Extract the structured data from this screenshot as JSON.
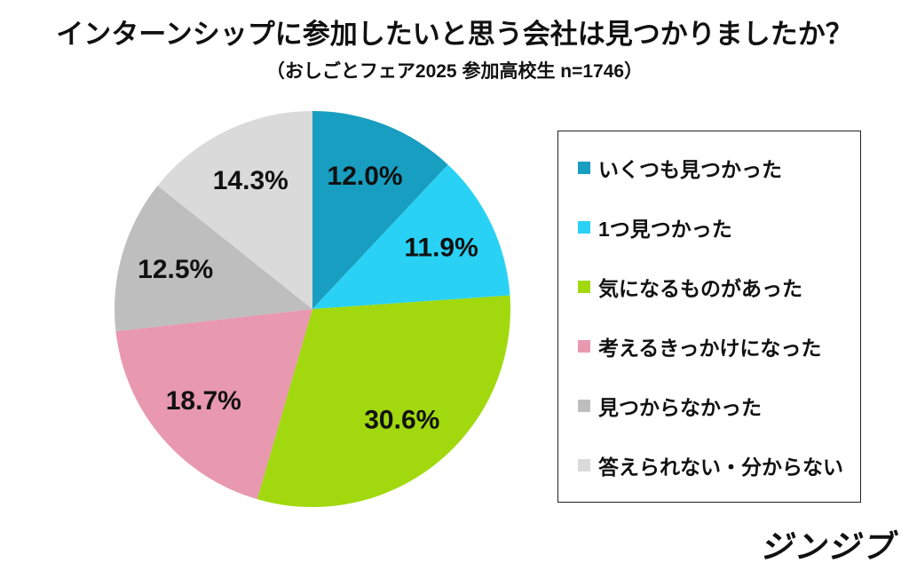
{
  "header": {
    "title": "インターンシップに参加したいと思う会社は見つかりましたか？",
    "subtitle": "（おしごとフェア2025 参加高校生 n=1746）"
  },
  "chart_data": {
    "type": "pie",
    "title": "インターンシップに参加したいと思う会社は見つかりましたか？",
    "subtitle": "（おしごとフェア2025 参加高校生 n=1746）",
    "sample_note": "おしごとフェア2025 参加高校生",
    "n": 1746,
    "start_angle_deg": 0,
    "direction": "clockwise",
    "legend_position": "right",
    "label_radius_fraction": 0.72,
    "segments": [
      {
        "label": "いくつも見つかった",
        "value": 12.0,
        "display": "12.0%",
        "color": "#189EC0"
      },
      {
        "label": "1つ見つかった",
        "value": 11.9,
        "display": "11.9%",
        "color": "#29D2F4"
      },
      {
        "label": "気になるものがあった",
        "value": 30.6,
        "display": "30.6%",
        "color": "#A1D90E"
      },
      {
        "label": "考えるきっかけになった",
        "value": 18.7,
        "display": "18.7%",
        "color": "#E898AF"
      },
      {
        "label": "見つからなかった",
        "value": 12.5,
        "display": "12.5%",
        "color": "#BEBEBE"
      },
      {
        "label": "答えられない・分からない",
        "value": 14.3,
        "display": "14.3%",
        "color": "#DADADA"
      }
    ]
  },
  "logo": {
    "text": "ジンジブ"
  }
}
